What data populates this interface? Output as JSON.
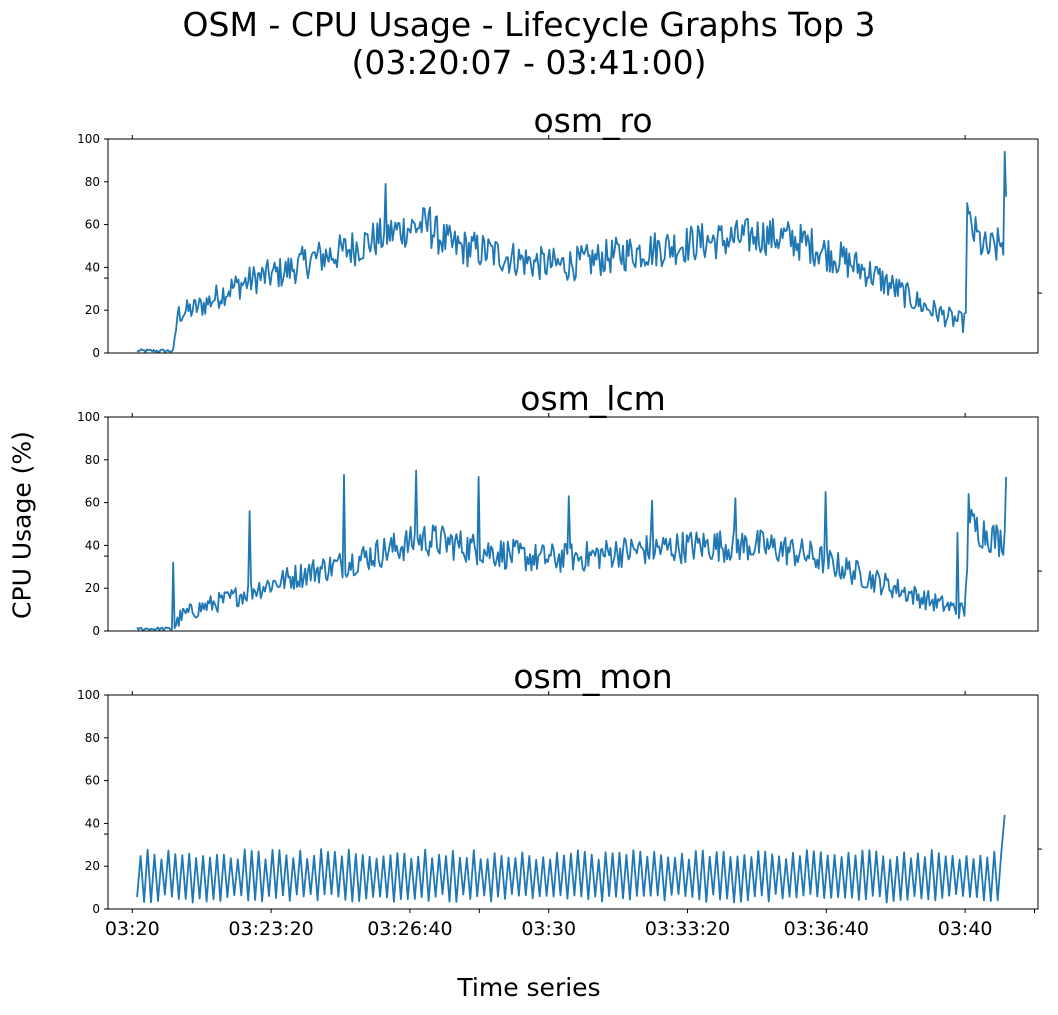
{
  "title": "OSM - CPU Usage - Lifecycle Graphs Top 3",
  "subtitle": "(03:20:07 - 03:41:00)",
  "ylabel": "CPU Usage (%)",
  "xlabel": "Time series",
  "colors": {
    "line": "#1f77b4"
  },
  "chart_data": [
    {
      "type": "line",
      "title": "osm_ro",
      "x_range": [
        "03:20:07",
        "03:41:00"
      ],
      "ylim": [
        0,
        100
      ],
      "yticks": [
        "0",
        "20",
        "40",
        "60",
        "80",
        "100"
      ],
      "grid": false,
      "anchors": [
        [
          "03:20:07",
          1
        ],
        [
          "03:21:00",
          1
        ],
        [
          "03:21:05",
          18
        ],
        [
          "03:21:40",
          22
        ],
        [
          "03:22:20",
          30
        ],
        [
          "03:23:00",
          35
        ],
        [
          "03:23:40",
          38
        ],
        [
          "03:24:20",
          44
        ],
        [
          "03:25:00",
          47
        ],
        [
          "03:25:40",
          52
        ],
        [
          "03:26:20",
          57
        ],
        [
          "03:27:00",
          60
        ],
        [
          "03:27:40",
          50
        ],
        [
          "03:28:20",
          48
        ],
        [
          "03:29:00",
          45
        ],
        [
          "03:29:40",
          42
        ],
        [
          "03:30:20",
          41
        ],
        [
          "03:31:00",
          43
        ],
        [
          "03:31:40",
          46
        ],
        [
          "03:32:20",
          48
        ],
        [
          "03:33:00",
          50
        ],
        [
          "03:33:40",
          52
        ],
        [
          "03:34:20",
          53
        ],
        [
          "03:35:00",
          55
        ],
        [
          "03:35:40",
          54
        ],
        [
          "03:36:20",
          50
        ],
        [
          "03:37:00",
          44
        ],
        [
          "03:37:40",
          38
        ],
        [
          "03:38:20",
          30
        ],
        [
          "03:39:00",
          22
        ],
        [
          "03:39:40",
          16
        ],
        [
          "03:40:00",
          14
        ],
        [
          "03:40:05",
          60
        ],
        [
          "03:40:30",
          48
        ],
        [
          "03:40:50",
          50
        ],
        [
          "03:41:00",
          55
        ]
      ],
      "spikes": [
        [
          "03:26:05",
          79
        ],
        [
          "03:27:10",
          68
        ],
        [
          "03:40:03",
          70
        ],
        [
          "03:40:57",
          94
        ],
        [
          "03:41:00",
          73
        ]
      ]
    },
    {
      "type": "line",
      "title": "osm_lcm",
      "x_range": [
        "03:20:07",
        "03:41:00"
      ],
      "ylim": [
        0,
        100
      ],
      "yticks": [
        "0",
        "20",
        "40",
        "60",
        "80",
        "100"
      ],
      "grid": false,
      "anchors": [
        [
          "03:20:07",
          1
        ],
        [
          "03:21:00",
          1
        ],
        [
          "03:21:10",
          7
        ],
        [
          "03:21:40",
          11
        ],
        [
          "03:22:20",
          15
        ],
        [
          "03:23:00",
          20
        ],
        [
          "03:23:40",
          24
        ],
        [
          "03:24:20",
          28
        ],
        [
          "03:25:00",
          31
        ],
        [
          "03:25:40",
          35
        ],
        [
          "03:26:20",
          39
        ],
        [
          "03:27:00",
          43
        ],
        [
          "03:27:40",
          41
        ],
        [
          "03:28:20",
          38
        ],
        [
          "03:29:00",
          36
        ],
        [
          "03:29:40",
          34
        ],
        [
          "03:30:20",
          34
        ],
        [
          "03:31:00",
          35
        ],
        [
          "03:31:40",
          37
        ],
        [
          "03:32:20",
          38
        ],
        [
          "03:33:00",
          39
        ],
        [
          "03:33:40",
          40
        ],
        [
          "03:34:20",
          40
        ],
        [
          "03:35:00",
          40
        ],
        [
          "03:35:40",
          38
        ],
        [
          "03:36:20",
          35
        ],
        [
          "03:37:00",
          30
        ],
        [
          "03:37:40",
          25
        ],
        [
          "03:38:20",
          20
        ],
        [
          "03:39:00",
          15
        ],
        [
          "03:39:40",
          11
        ],
        [
          "03:40:00",
          9
        ],
        [
          "03:40:05",
          50
        ],
        [
          "03:40:30",
          46
        ],
        [
          "03:40:50",
          42
        ],
        [
          "03:41:00",
          45
        ]
      ],
      "spikes": [
        [
          "03:21:00",
          32
        ],
        [
          "03:22:50",
          56
        ],
        [
          "03:25:05",
          73
        ],
        [
          "03:26:50",
          75
        ],
        [
          "03:28:20",
          72
        ],
        [
          "03:30:30",
          63
        ],
        [
          "03:32:30",
          61
        ],
        [
          "03:34:30",
          62
        ],
        [
          "03:36:40",
          65
        ],
        [
          "03:39:50",
          46
        ],
        [
          "03:40:05",
          64
        ],
        [
          "03:41:00",
          72
        ]
      ]
    },
    {
      "type": "line",
      "title": "osm_mon",
      "x_range": [
        "03:20:07",
        "03:41:00"
      ],
      "ylim": [
        0,
        100
      ],
      "yticks": [
        "0",
        "20",
        "40",
        "60",
        "80",
        "100"
      ],
      "xticks": [
        "03:20",
        "03:23:20",
        "03:26:40",
        "03:30",
        "03:33:20",
        "03:36:40",
        "03:40"
      ],
      "grid": false,
      "oscillation": {
        "low": 3,
        "high": 26,
        "period_s": 10
      },
      "spikes": [
        [
          "03:41:00",
          44
        ]
      ]
    }
  ]
}
